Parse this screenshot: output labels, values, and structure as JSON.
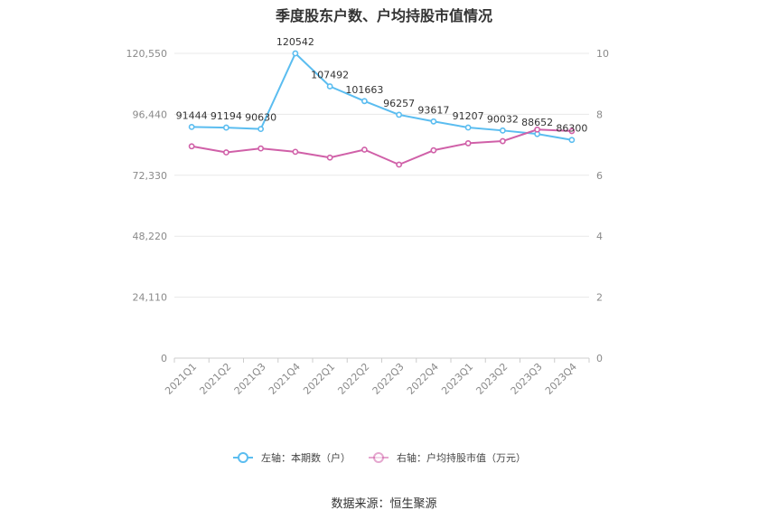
{
  "chart_data": {
    "type": "line",
    "title": "季度股东户数、户均持股市值情况",
    "categories": [
      "2021Q1",
      "2021Q2",
      "2021Q3",
      "2021Q4",
      "2022Q1",
      "2022Q2",
      "2022Q3",
      "2022Q4",
      "2023Q1",
      "2023Q2",
      "2023Q3",
      "2023Q4"
    ],
    "left_axis": {
      "ticks": [
        "0",
        "24,110",
        "48,220",
        "72,330",
        "96,440",
        "120,550"
      ],
      "ylim": [
        0,
        120550
      ]
    },
    "right_axis": {
      "ticks": [
        "0",
        "2",
        "4",
        "6",
        "8",
        "10"
      ],
      "ylim": [
        0,
        10
      ]
    },
    "series": [
      {
        "name": "左轴：本期数（户）",
        "axis": "left",
        "color": "#5bbdf0",
        "values": [
          91444,
          91194,
          90630,
          120542,
          107492,
          101663,
          96257,
          93617,
          91207,
          90032,
          88652,
          86300
        ],
        "labels": [
          "91444",
          "91194",
          "90630",
          "120542",
          "107492",
          "101663",
          "96257",
          "93617",
          "91207",
          "90032",
          "88652",
          "86300"
        ]
      },
      {
        "name": "右轴：户均持股市值（万元）",
        "axis": "right",
        "color": "#d060a8",
        "values": [
          6.95,
          6.75,
          6.88,
          6.77,
          6.58,
          6.84,
          6.35,
          6.82,
          7.05,
          7.12,
          7.5,
          7.45
        ]
      }
    ],
    "grid": true,
    "legend": "bottom-center",
    "source": "数据来源：恒生聚源"
  }
}
